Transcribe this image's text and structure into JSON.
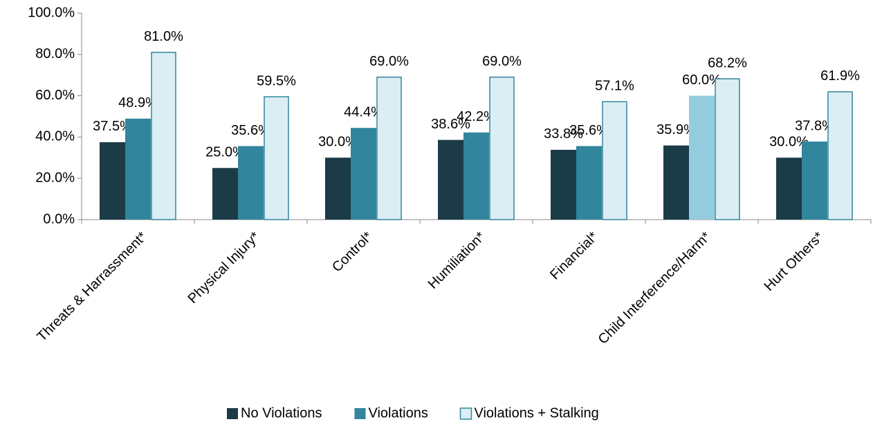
{
  "chart_data": {
    "type": "bar",
    "categories": [
      "Threats & Harrassment*",
      "Physical Injury*",
      "Control*",
      "Humiliation*",
      "Financial*",
      "Child Interference/Harm*",
      "Hurt Others*"
    ],
    "series": [
      {
        "name": "No Violations",
        "color": "#1b3b47",
        "values": [
          37.5,
          25.0,
          30.0,
          38.6,
          33.8,
          35.9,
          30.0
        ],
        "value_labels": [
          "37.5%",
          "25.0%",
          "30.0%",
          "38.6%",
          "33.8%",
          "35.9%",
          "30.0%"
        ]
      },
      {
        "name": "Violations",
        "color": "#31859c",
        "colors": [
          "#31859c",
          "#31859c",
          "#31859c",
          "#31859c",
          "#31859c",
          "#93cddd",
          "#31859c"
        ],
        "values": [
          48.9,
          35.6,
          44.4,
          42.2,
          35.6,
          60.0,
          37.8
        ],
        "value_labels": [
          "48.9%",
          "35.6%",
          "44.4%",
          "42.2%",
          "35.6%",
          "60.0%",
          "37.8%"
        ]
      },
      {
        "name": "Violations + Stalking",
        "color": "#dbeef4",
        "stroke": "#31859c",
        "values": [
          81.0,
          59.5,
          69.0,
          69.0,
          57.1,
          68.2,
          61.9
        ],
        "value_labels": [
          "81.0%",
          "59.5%",
          "69.0%",
          "69.0%",
          "57.1%",
          "68.2%",
          "61.9%"
        ]
      }
    ],
    "ylim": [
      0,
      100
    ],
    "yticks": [
      {
        "value": 0,
        "label": "0.0%"
      },
      {
        "value": 20,
        "label": "20.0%"
      },
      {
        "value": 40,
        "label": "40.0%"
      },
      {
        "value": 60,
        "label": "60.0%"
      },
      {
        "value": 80,
        "label": "80.0%"
      },
      {
        "value": 100,
        "label": "100.0%"
      }
    ],
    "grid": false,
    "legend": "bottom"
  }
}
